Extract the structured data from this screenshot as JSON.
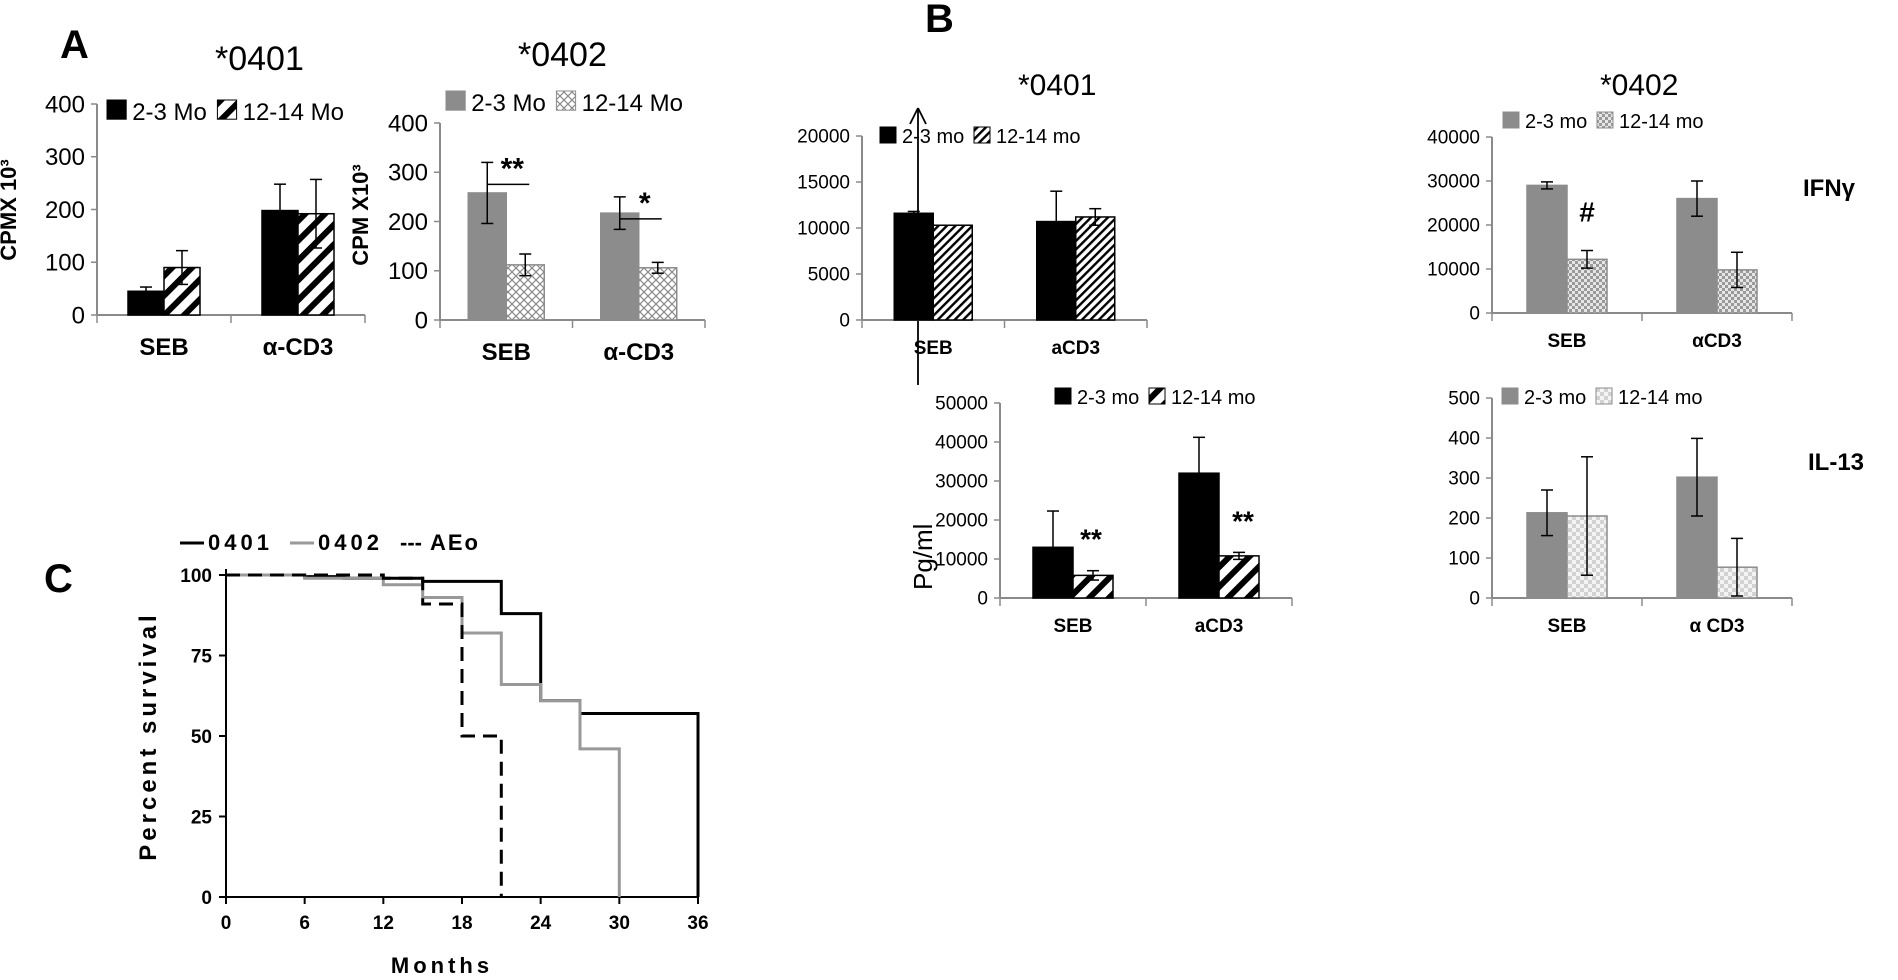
{
  "figure": {
    "panel_labels": [
      "A",
      "B",
      "C"
    ],
    "panel_b_ylabel": "Pg/ml",
    "row_labels": [
      "IFNγ",
      "IL-13"
    ]
  },
  "chart_data": [
    {
      "id": "A0401",
      "type": "bar",
      "title": "*0401",
      "ylabel": "CPMX 10³",
      "xlabel": "",
      "ylim": [
        0,
        400
      ],
      "yticks": [
        0,
        100,
        200,
        300,
        400
      ],
      "categories": [
        "SEB",
        "α-CD3"
      ],
      "series": [
        {
          "name": "2-3 Mo",
          "values": [
            45,
            198
          ],
          "errors": [
            8,
            50
          ],
          "fill": "black"
        },
        {
          "name": "12-14 Mo",
          "values": [
            90,
            192
          ],
          "errors": [
            32,
            65
          ],
          "fill": "diag-thick"
        }
      ],
      "annotations": [],
      "legend": "top"
    },
    {
      "id": "A0402",
      "type": "bar",
      "title": "*0402",
      "ylabel": "CPM X10³",
      "xlabel": "",
      "ylim": [
        0,
        400
      ],
      "yticks": [
        0,
        100,
        200,
        300,
        400
      ],
      "categories": [
        "SEB",
        "α-CD3"
      ],
      "series": [
        {
          "name": "2-3 Mo",
          "values": [
            258,
            217
          ],
          "errors": [
            62,
            33
          ],
          "fill": "gray"
        },
        {
          "name": "12-14 Mo",
          "values": [
            112,
            106
          ],
          "errors": [
            22,
            11
          ],
          "fill": "grid"
        }
      ],
      "annotations": [
        {
          "category": 0,
          "text": "**"
        },
        {
          "category": 1,
          "text": "*"
        }
      ],
      "legend": "top"
    },
    {
      "id": "B0401_IFN",
      "type": "bar",
      "title": "*0401",
      "ylabel": "",
      "xlabel": "",
      "ylim": [
        0,
        20000
      ],
      "yticks": [
        0,
        5000,
        10000,
        15000,
        20000
      ],
      "categories": [
        "SEB",
        "aCD3"
      ],
      "series": [
        {
          "name": "2-3 mo",
          "values": [
            11600,
            10700
          ],
          "errors": [
            200,
            3300
          ],
          "fill": "black"
        },
        {
          "name": "12-14 mo",
          "values": [
            10300,
            11200
          ],
          "errors": [
            0,
            900
          ],
          "fill": "diag-thin"
        }
      ],
      "annotations": [],
      "legend": "top"
    },
    {
      "id": "B0402_IFN",
      "type": "bar",
      "title": "*0402",
      "ylabel": "",
      "xlabel": "",
      "ylim": [
        0,
        40000
      ],
      "yticks": [
        0,
        10000,
        20000,
        30000,
        40000
      ],
      "categories": [
        "SEB",
        "αCD3"
      ],
      "series": [
        {
          "name": "2-3 mo",
          "values": [
            29000,
            26000
          ],
          "errors": [
            800,
            4000
          ],
          "fill": "gray"
        },
        {
          "name": "12-14 mo",
          "values": [
            12200,
            9800
          ],
          "errors": [
            2000,
            4000
          ],
          "fill": "checker"
        }
      ],
      "annotations": [
        {
          "category": 0,
          "text": "#"
        }
      ],
      "legend": "top"
    },
    {
      "id": "B0401_IL13",
      "type": "bar",
      "title": "",
      "ylabel": "",
      "xlabel": "",
      "ylim": [
        0,
        50000
      ],
      "yticks": [
        0,
        10000,
        20000,
        30000,
        40000,
        50000
      ],
      "categories": [
        "SEB",
        "aCD3"
      ],
      "series": [
        {
          "name": "2-3 mo",
          "values": [
            13000,
            32000
          ],
          "errors": [
            9300,
            9200
          ],
          "fill": "black"
        },
        {
          "name": "12-14 mo",
          "values": [
            5800,
            10800
          ],
          "errors": [
            1200,
            900
          ],
          "fill": "diag-thick"
        }
      ],
      "annotations": [
        {
          "category": 0,
          "text": "**"
        },
        {
          "category": 1,
          "text": "**"
        }
      ],
      "legend": "top"
    },
    {
      "id": "B0402_IL13",
      "type": "bar",
      "title": "",
      "ylabel": "",
      "xlabel": "",
      "ylim": [
        0,
        500
      ],
      "yticks": [
        0,
        100,
        200,
        300,
        400,
        500
      ],
      "categories": [
        "SEB",
        "α CD3"
      ],
      "series": [
        {
          "name": "2-3 mo",
          "values": [
            213,
            302
          ],
          "errors": [
            57,
            97
          ],
          "fill": "gray"
        },
        {
          "name": "12-14 mo",
          "values": [
            205,
            77
          ],
          "errors": [
            148,
            72
          ],
          "fill": "lightchecker"
        }
      ],
      "annotations": [],
      "legend": "top"
    },
    {
      "id": "C_survival",
      "type": "line",
      "title": "",
      "xlabel": "Months",
      "ylabel": "Percent survival",
      "xlim": [
        0,
        36
      ],
      "ylim": [
        0,
        100
      ],
      "xticks": [
        0,
        6,
        12,
        18,
        24,
        30,
        36
      ],
      "yticks": [
        0,
        25,
        50,
        75,
        100
      ],
      "series": [
        {
          "name": "0401",
          "style": "solid-black",
          "points": [
            [
              0,
              100
            ],
            [
              6,
              100
            ],
            [
              6,
              99.5
            ],
            [
              9,
              99.5
            ],
            [
              9,
              99
            ],
            [
              15,
              99
            ],
            [
              15,
              98
            ],
            [
              21,
              98
            ],
            [
              21,
              88
            ],
            [
              24,
              88
            ],
            [
              24,
              61
            ],
            [
              27,
              61
            ],
            [
              27,
              57
            ],
            [
              36,
              57
            ],
            [
              36,
              0
            ]
          ]
        },
        {
          "name": "0402",
          "style": "solid-gray",
          "points": [
            [
              0,
              100
            ],
            [
              6,
              100
            ],
            [
              6,
              99
            ],
            [
              12,
              99
            ],
            [
              12,
              97
            ],
            [
              15,
              97
            ],
            [
              15,
              93
            ],
            [
              18,
              93
            ],
            [
              18,
              82
            ],
            [
              21,
              82
            ],
            [
              21,
              66
            ],
            [
              24,
              66
            ],
            [
              24,
              61
            ],
            [
              27,
              61
            ],
            [
              27,
              46
            ],
            [
              30,
              46
            ],
            [
              30,
              0
            ]
          ]
        },
        {
          "name": "AEo",
          "style": "dashed-black",
          "points": [
            [
              0,
              100
            ],
            [
              12,
              100
            ],
            [
              12,
              99
            ],
            [
              15,
              99
            ],
            [
              15,
              91
            ],
            [
              18,
              91
            ],
            [
              18,
              50
            ],
            [
              21,
              50
            ],
            [
              21,
              0
            ]
          ]
        }
      ],
      "legend": "top"
    }
  ]
}
